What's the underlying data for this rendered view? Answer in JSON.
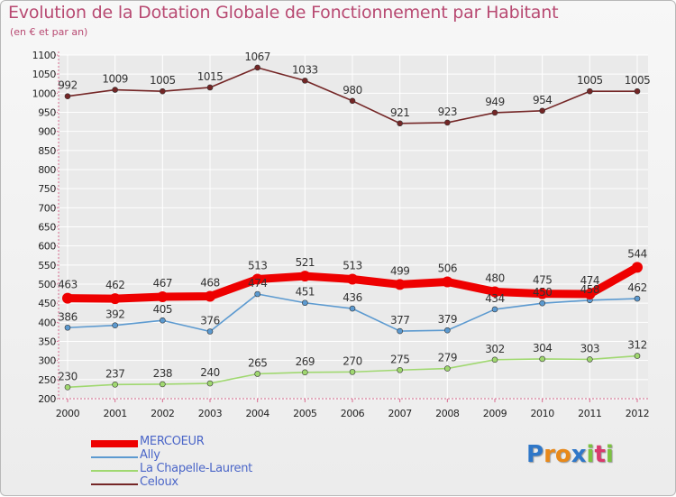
{
  "title": "Evolution de la Dotation Globale de Fonctionnement par Habitant",
  "subtitle": "(en € et par an)",
  "logo": {
    "text": "Proxiti",
    "letters": [
      "P",
      "r",
      "o",
      "x",
      "i",
      "t",
      "i"
    ]
  },
  "colors": {
    "title": "#b84a72",
    "grid": "#ffffff",
    "axis": "#555555",
    "legend_text": "#4b66c8",
    "logo_letters": [
      "#2f77c8",
      "#e8891a",
      "#e8891a",
      "#2f77c8",
      "#7cc241",
      "#d93a6d",
      "#7cc241"
    ]
  },
  "chart_data": {
    "type": "line",
    "title": "Evolution de la Dotation Globale de Fonctionnement par Habitant",
    "subtitle": "(en € et par an)",
    "xlabel": "",
    "ylabel": "",
    "x": [
      "2000",
      "2001",
      "2002",
      "2003",
      "2004",
      "2005",
      "2006",
      "2007",
      "2008",
      "2009",
      "2010",
      "2011",
      "2012"
    ],
    "ylim": [
      200,
      1100
    ],
    "yticks": [
      200,
      250,
      300,
      350,
      400,
      450,
      500,
      550,
      600,
      650,
      700,
      750,
      800,
      850,
      900,
      950,
      1000,
      1050,
      1100
    ],
    "grid": true,
    "legend_position": "bottom-left",
    "series": [
      {
        "name": "MERCOEUR",
        "color": "#ee0000",
        "style": "bold",
        "values": [
          463,
          462,
          467,
          468,
          513,
          521,
          513,
          499,
          506,
          480,
          475,
          474,
          544
        ]
      },
      {
        "name": "Ally",
        "color": "#5c9ad0",
        "style": "thin",
        "values": [
          386,
          392,
          405,
          376,
          474,
          451,
          436,
          377,
          379,
          434,
          450,
          458,
          462
        ]
      },
      {
        "name": "La Chapelle-Laurent",
        "color": "#a0d870",
        "style": "thin",
        "values": [
          230,
          237,
          238,
          240,
          265,
          269,
          270,
          275,
          279,
          302,
          304,
          303,
          312
        ]
      },
      {
        "name": "Celoux",
        "color": "#742626",
        "style": "thin",
        "values": [
          992,
          1009,
          1005,
          1015,
          1067,
          1033,
          980,
          921,
          923,
          949,
          954,
          1005,
          1005
        ]
      }
    ],
    "data_labels": [
      {
        "series": "MERCOEUR",
        "labels": [
          "463",
          "462",
          "467",
          "468",
          "513",
          "521",
          "513",
          "499",
          "506",
          "480",
          "475",
          "474",
          "544"
        ]
      },
      {
        "series": "Ally",
        "labels": [
          "386",
          "392",
          "405",
          "376",
          "474",
          "451",
          "436",
          "377",
          "379",
          "434",
          "450",
          "458",
          "462"
        ]
      },
      {
        "series": "La Chapelle-Laurent",
        "labels": [
          "230",
          "237",
          "238",
          "240",
          "265",
          "269",
          "270",
          "275",
          "279",
          "302",
          "304",
          "303",
          "312"
        ]
      },
      {
        "series": "Celoux",
        "labels": [
          "992",
          "1009",
          "1005",
          "1015",
          "1067",
          "1033",
          "980",
          "921",
          "923",
          "949",
          "954",
          "1005",
          "1005"
        ]
      }
    ]
  }
}
